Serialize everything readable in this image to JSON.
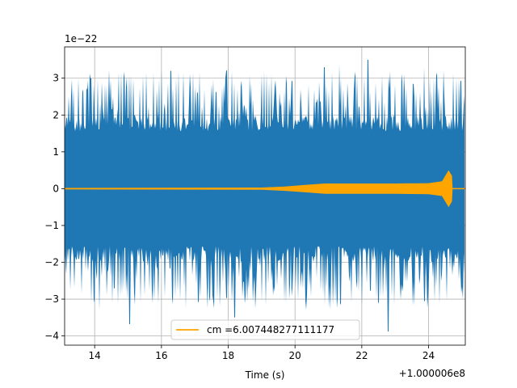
{
  "chart_data": {
    "type": "line",
    "title": "",
    "xlabel": "Time (s)",
    "ylabel": "",
    "x_offset_label": "+1.000006e8",
    "y_scale_label": "1e−22",
    "xlim": [
      13.1,
      25.1
    ],
    "ylim": [
      -4.25,
      3.85
    ],
    "xticks": [
      14,
      16,
      18,
      20,
      22,
      24
    ],
    "xtick_labels": [
      "14",
      "16",
      "18",
      "20",
      "22",
      "24"
    ],
    "yticks": [
      3,
      2,
      1,
      0,
      -1,
      -2,
      -3,
      -4
    ],
    "ytick_labels": [
      "3",
      "2",
      "1",
      "0",
      "−1",
      "−2",
      "−3",
      "−4"
    ],
    "grid": true,
    "legend_location": "lower center",
    "series": [
      {
        "color": "#1f77b4",
        "description": "noisy strain data",
        "typical_amplitude": 2.0,
        "peaks": [
          {
            "x": 15.05,
            "y": -3.68
          },
          {
            "x": 22.8,
            "y": -3.88
          },
          {
            "x": 22.2,
            "y": 3.5
          },
          {
            "x": 13.9,
            "y": 3.0
          },
          {
            "x": 16.3,
            "y": 3.2
          },
          {
            "x": 20.9,
            "y": 3.3
          },
          {
            "x": 18.2,
            "y": -3.5
          },
          {
            "x": 23.9,
            "y": -3.05
          }
        ]
      },
      {
        "name": "cm =6.007448277111177",
        "color": "#ffa500",
        "description": "inspiral template",
        "envelope": [
          {
            "x": 13.1,
            "amp": 0.02
          },
          {
            "x": 19.0,
            "amp": 0.03
          },
          {
            "x": 19.7,
            "amp": 0.06
          },
          {
            "x": 20.3,
            "amp": 0.1
          },
          {
            "x": 20.9,
            "amp": 0.14
          },
          {
            "x": 22.0,
            "amp": 0.14
          },
          {
            "x": 23.0,
            "amp": 0.14
          },
          {
            "x": 24.0,
            "amp": 0.15
          },
          {
            "x": 24.4,
            "amp": 0.2
          },
          {
            "x": 24.6,
            "amp": 0.5
          },
          {
            "x": 24.7,
            "amp": 0.35
          },
          {
            "x": 24.72,
            "amp": 0.0
          },
          {
            "x": 25.1,
            "amp": 0.0
          }
        ]
      }
    ]
  }
}
